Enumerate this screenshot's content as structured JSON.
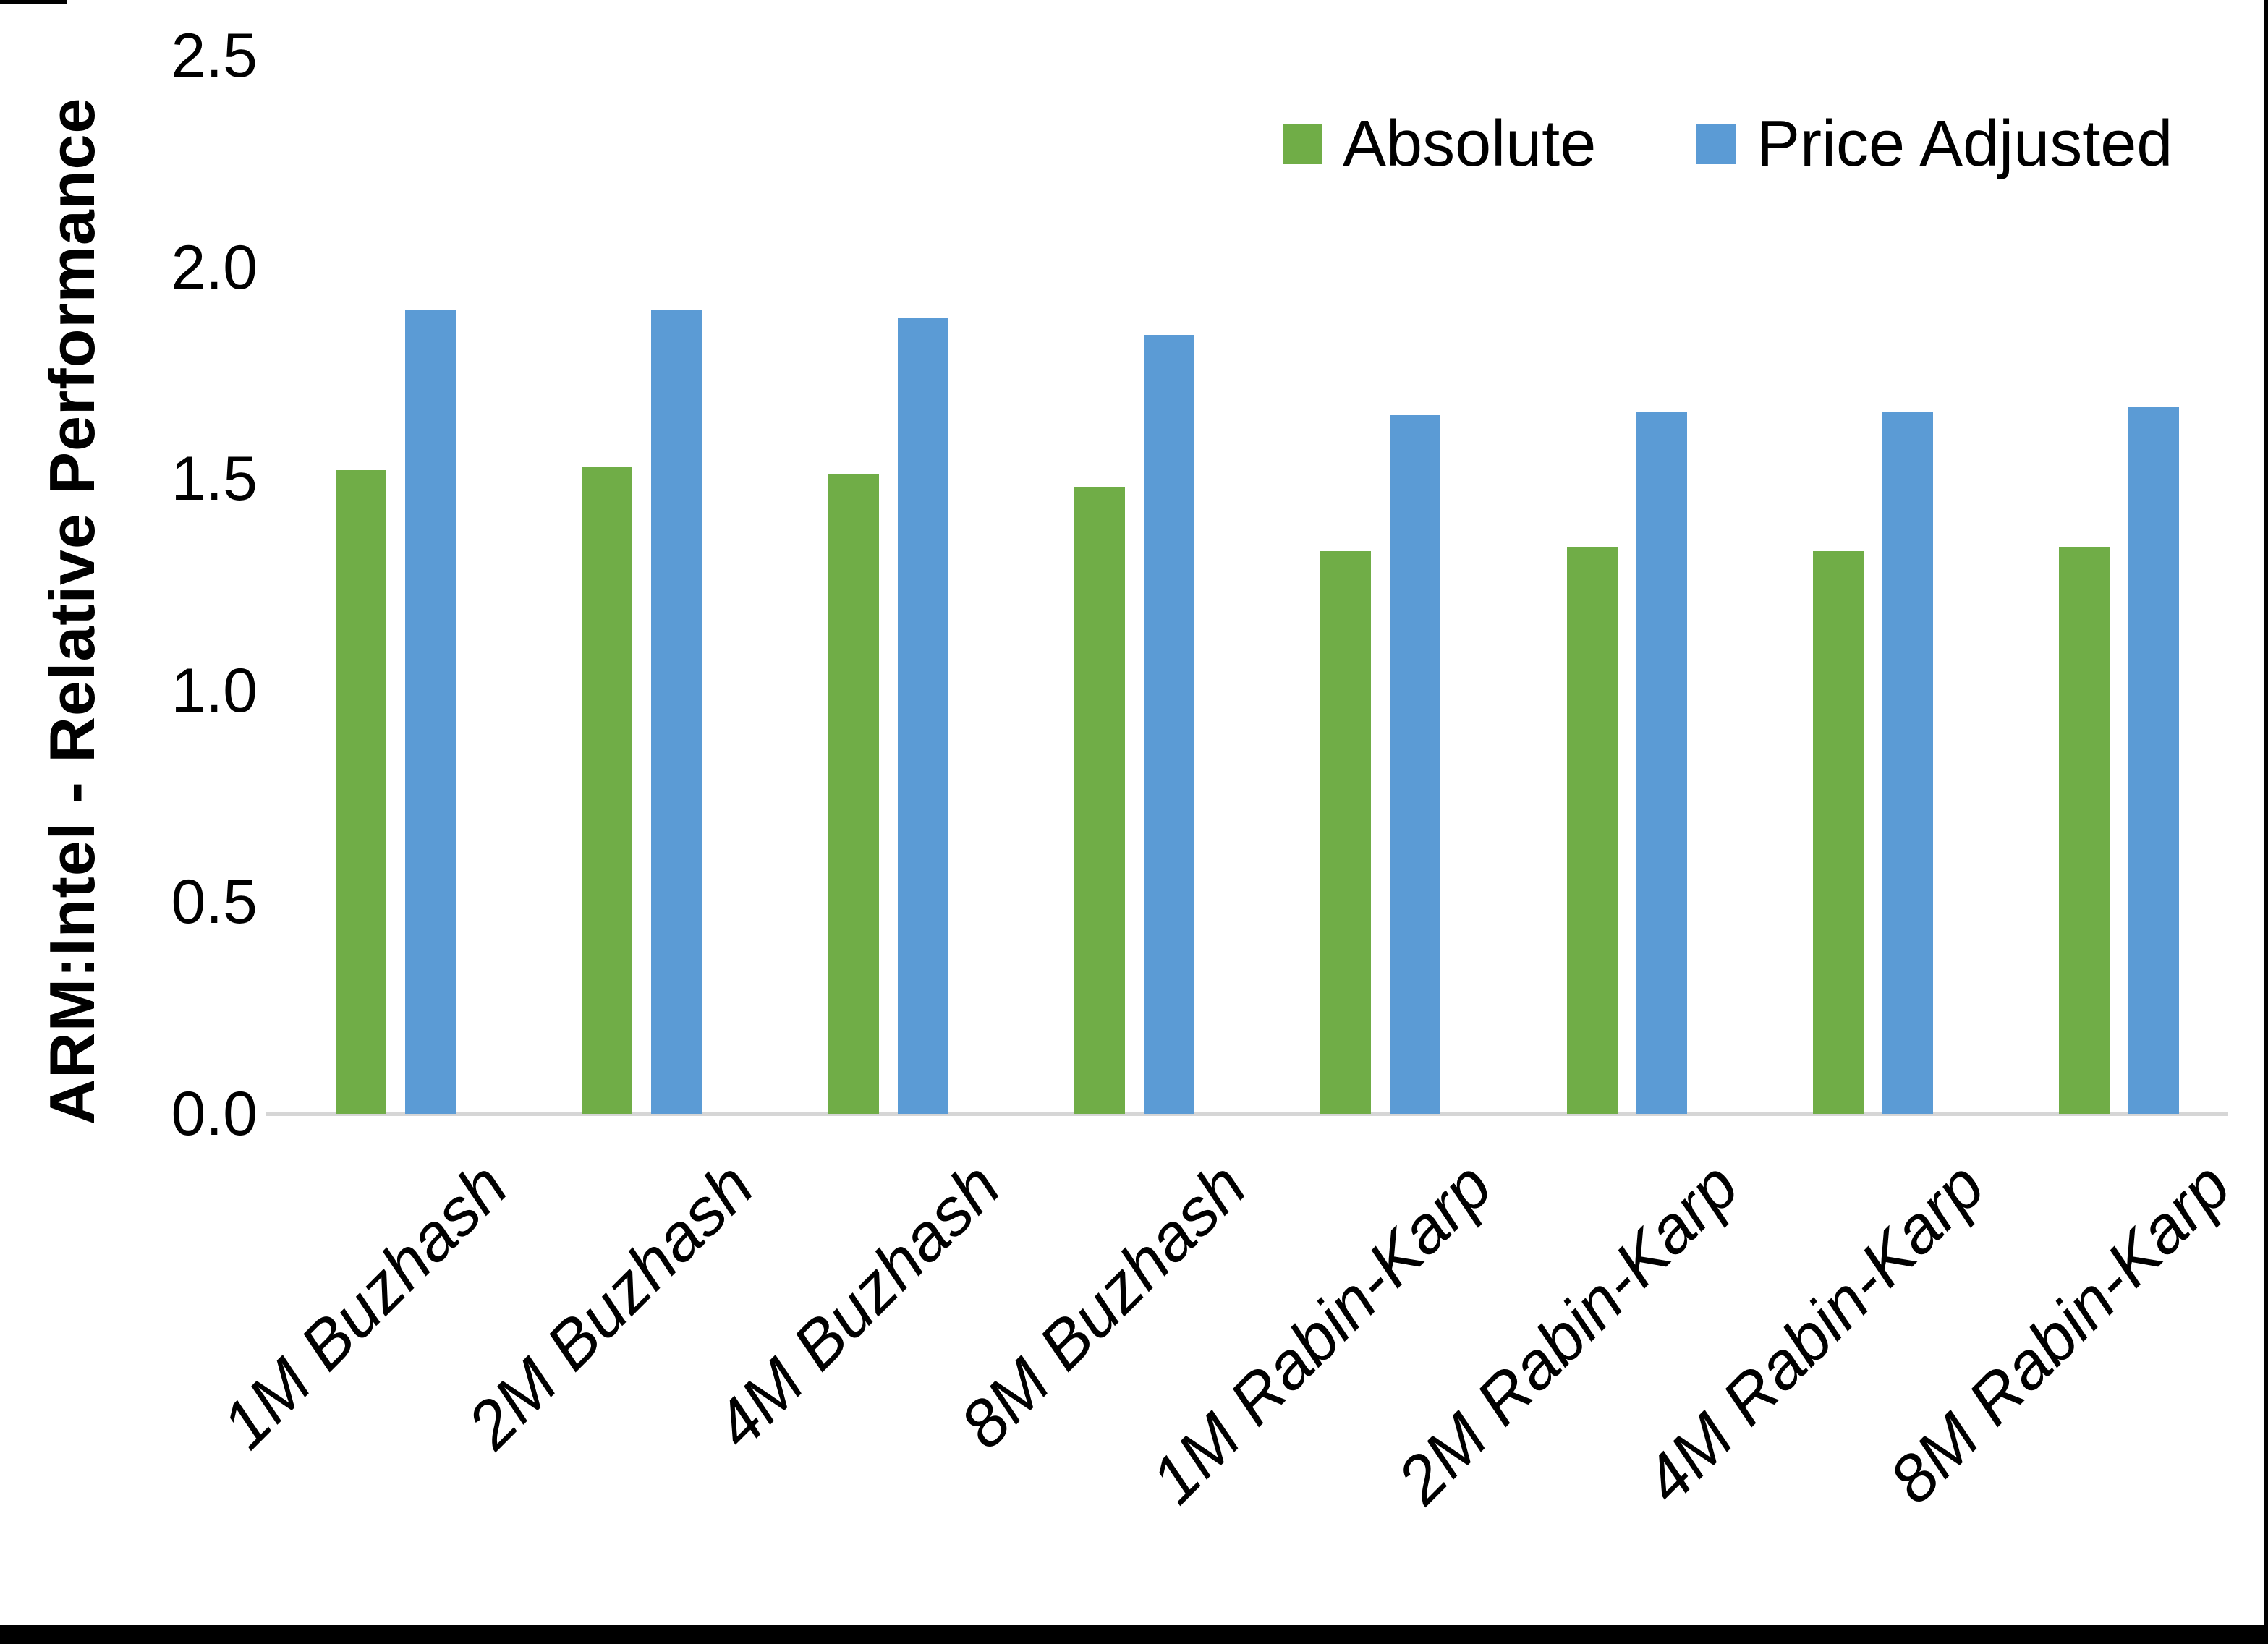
{
  "chart_data": {
    "type": "bar",
    "title": "",
    "ylabel": "ARM:Intel - Relative Performance",
    "xlabel": "",
    "categories": [
      "1M Buzhash",
      "2M Buzhash",
      "4M Buzhash",
      "8M Buzhash",
      "1M Rabin-Karp",
      "2M Rabin-Karp",
      "4M Rabin-Karp",
      "8M Rabin-Karp"
    ],
    "series": [
      {
        "name": "Absolute",
        "color": "#70AD47",
        "values": [
          1.52,
          1.53,
          1.51,
          1.48,
          1.33,
          1.34,
          1.33,
          1.34
        ]
      },
      {
        "name": "Price Adjusted",
        "color": "#5B9BD5",
        "values": [
          1.9,
          1.9,
          1.88,
          1.84,
          1.65,
          1.66,
          1.66,
          1.67
        ]
      }
    ],
    "ylim": [
      0.0,
      2.5
    ],
    "yticks": [
      "0.0",
      "0.5",
      "1.0",
      "1.5",
      "2.0",
      "2.5"
    ],
    "grid": false,
    "legend_position": "top-right",
    "colors": {
      "axis_line": "#D6D6D6",
      "text": "#000000",
      "frame_border": "#000000",
      "background": "#FFFFFF"
    }
  }
}
